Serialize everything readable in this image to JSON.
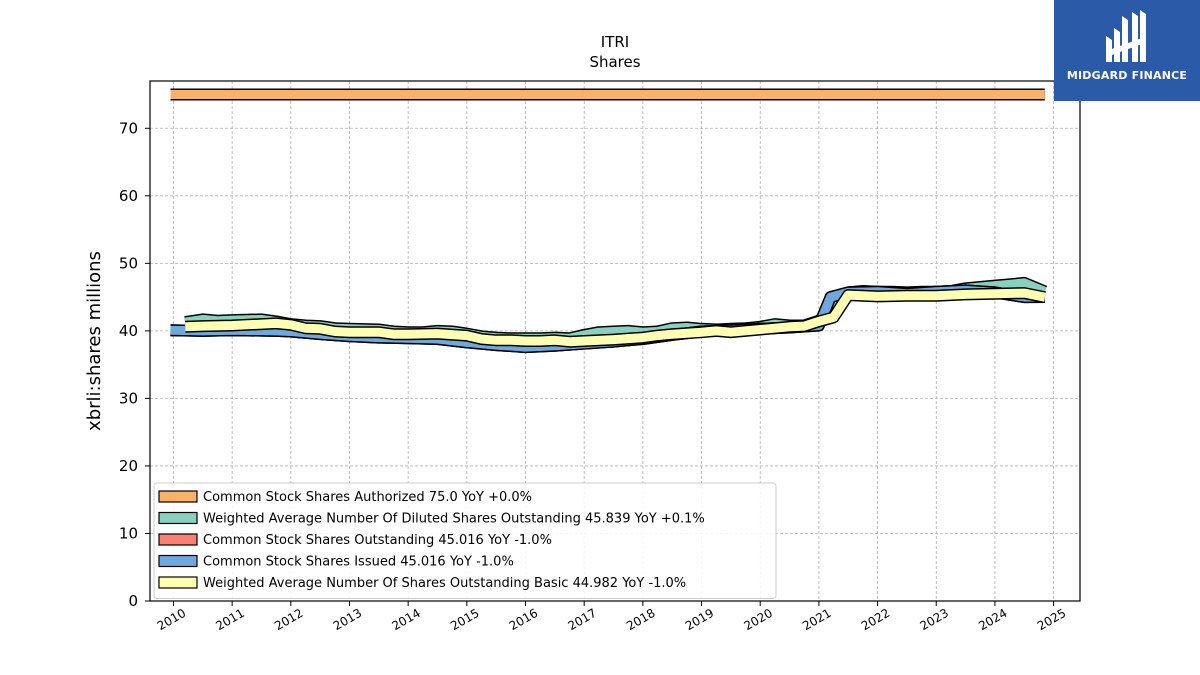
{
  "brand": {
    "name": "MIDGARD FINANCE",
    "color": "#2b5aa8"
  },
  "chart_data": {
    "type": "line",
    "title": "ITRI",
    "subtitle": "Shares",
    "ylabel": "xbrli:shares millions",
    "xlabel": "",
    "ylim": [
      0,
      77
    ],
    "xlim": [
      2009.6,
      2025.45
    ],
    "yticks": [
      0,
      10,
      20,
      30,
      40,
      50,
      60,
      70
    ],
    "xticks": [
      "2010",
      "2011",
      "2012",
      "2013",
      "2014",
      "2015",
      "2016",
      "2017",
      "2018",
      "2019",
      "2020",
      "2021",
      "2022",
      "2023",
      "2024",
      "2025"
    ],
    "grid": true,
    "legend_position": "lower-left",
    "series": [
      {
        "name": "Common Stock Shares Authorized",
        "legend": "Common Stock Shares Authorized  75.0 YoY +0.0%",
        "color": "#f8b26a",
        "x": [
          2009.95,
          2024.85
        ],
        "y": [
          75.0,
          75.0
        ]
      },
      {
        "name": "Weighted Average Number Of Diluted Shares Outstanding",
        "legend": "Weighted Average Number Of Diluted Shares Outstanding  45.839 YoY +0.1%",
        "color": "#88d0c0",
        "x": [
          2010.2,
          2010.5,
          2010.75,
          2011.0,
          2011.5,
          2011.75,
          2012.0,
          2012.25,
          2012.5,
          2012.75,
          2013.0,
          2013.5,
          2013.75,
          2014.0,
          2014.25,
          2014.5,
          2014.75,
          2015.0,
          2015.25,
          2015.5,
          2015.75,
          2016.0,
          2016.25,
          2016.5,
          2016.75,
          2017.0,
          2017.25,
          2017.5,
          2017.75,
          2018.0,
          2018.25,
          2018.5,
          2018.75,
          2019.0,
          2019.25,
          2019.5,
          2019.75,
          2020.0,
          2020.25,
          2020.5,
          2020.75,
          2021.0,
          2021.25,
          2021.5,
          2021.75,
          2022.0,
          2022.25,
          2022.5,
          2022.75,
          2023.0,
          2023.25,
          2023.5,
          2023.75,
          2024.0,
          2024.25,
          2024.5,
          2024.85
        ],
        "y": [
          41.3,
          41.7,
          41.5,
          41.6,
          41.7,
          41.4,
          41.0,
          40.8,
          40.7,
          40.4,
          40.3,
          40.2,
          39.9,
          39.8,
          39.8,
          40.0,
          39.9,
          39.6,
          39.2,
          39.0,
          38.9,
          38.9,
          38.9,
          39.0,
          38.9,
          39.4,
          39.8,
          39.9,
          40.0,
          39.8,
          39.9,
          40.4,
          40.5,
          40.3,
          40.2,
          40.3,
          40.4,
          40.6,
          41.0,
          40.8,
          40.8,
          41.5,
          43.5,
          45.7,
          45.9,
          45.8,
          45.8,
          45.7,
          45.8,
          45.8,
          45.9,
          46.3,
          46.5,
          46.7,
          46.9,
          47.1,
          45.839
        ]
      },
      {
        "name": "Common Stock Shares Outstanding",
        "legend": "Common Stock Shares Outstanding  45.016 YoY -1.0%",
        "color": "#fa8072",
        "x": [
          2009.95,
          2010.5,
          2011.0,
          2011.75,
          2012.0,
          2012.5,
          2013.0,
          2013.5,
          2014.0,
          2014.5,
          2015.0,
          2015.5,
          2016.0,
          2016.5,
          2017.0,
          2017.5,
          2018.0,
          2018.5,
          2019.0,
          2019.5,
          2020.0,
          2020.5,
          2021.0,
          2021.2,
          2021.5,
          2022.0,
          2022.5,
          2023.0,
          2023.5,
          2024.0,
          2024.5,
          2024.85
        ],
        "y": [
          40.1,
          40.0,
          40.1,
          40.0,
          39.9,
          39.5,
          39.2,
          39.0,
          38.9,
          38.8,
          38.3,
          37.9,
          37.6,
          37.8,
          38.1,
          38.4,
          38.8,
          39.4,
          39.9,
          40.1,
          40.3,
          40.5,
          40.8,
          45.0,
          45.7,
          45.8,
          45.5,
          45.8,
          46.0,
          45.7,
          45.0,
          45.016
        ]
      },
      {
        "name": "Common Stock Shares Issued",
        "legend": "Common Stock Shares Issued  45.016 YoY -1.0%",
        "color": "#6fa8dc",
        "x": [
          2009.95,
          2010.5,
          2011.0,
          2011.75,
          2012.0,
          2012.5,
          2013.0,
          2013.5,
          2014.0,
          2014.5,
          2015.0,
          2015.5,
          2016.0,
          2016.5,
          2017.0,
          2017.5,
          2018.0,
          2018.5,
          2019.0,
          2019.5,
          2020.0,
          2020.5,
          2021.0,
          2021.2,
          2021.5,
          2022.0,
          2022.5,
          2023.0,
          2023.5,
          2024.0,
          2024.5,
          2024.85
        ],
        "y": [
          40.1,
          40.0,
          40.1,
          40.0,
          39.9,
          39.5,
          39.2,
          39.0,
          38.9,
          38.8,
          38.3,
          37.9,
          37.6,
          37.8,
          38.1,
          38.4,
          38.8,
          39.4,
          39.9,
          40.1,
          40.3,
          40.5,
          40.8,
          45.0,
          45.7,
          45.8,
          45.5,
          45.8,
          46.0,
          45.7,
          45.0,
          45.016
        ]
      },
      {
        "name": "Weighted Average Number Of Shares Outstanding Basic",
        "legend": "Weighted Average Number Of Shares Outstanding Basic  44.982 YoY -1.0%",
        "color": "#ffffb3",
        "x": [
          2010.2,
          2010.5,
          2011.0,
          2011.5,
          2011.75,
          2012.0,
          2012.25,
          2012.5,
          2012.75,
          2013.0,
          2013.5,
          2013.75,
          2014.0,
          2014.5,
          2015.0,
          2015.25,
          2015.5,
          2015.75,
          2016.0,
          2016.25,
          2016.5,
          2016.75,
          2017.0,
          2017.5,
          2018.0,
          2018.25,
          2018.5,
          2019.0,
          2019.25,
          2019.5,
          2020.0,
          2020.5,
          2020.75,
          2021.0,
          2021.25,
          2021.5,
          2022.0,
          2022.5,
          2023.0,
          2023.5,
          2024.0,
          2024.5,
          2024.85
        ],
        "y": [
          40.6,
          40.7,
          40.8,
          41.0,
          41.1,
          40.9,
          40.4,
          40.3,
          39.9,
          39.8,
          39.8,
          39.5,
          39.5,
          39.6,
          39.3,
          38.8,
          38.6,
          38.6,
          38.5,
          38.5,
          38.6,
          38.4,
          38.5,
          38.7,
          39.0,
          39.3,
          39.5,
          39.8,
          40.0,
          39.8,
          40.2,
          40.6,
          40.7,
          41.4,
          42.0,
          45.3,
          45.1,
          45.2,
          45.2,
          45.4,
          45.5,
          45.6,
          44.982
        ]
      }
    ]
  }
}
